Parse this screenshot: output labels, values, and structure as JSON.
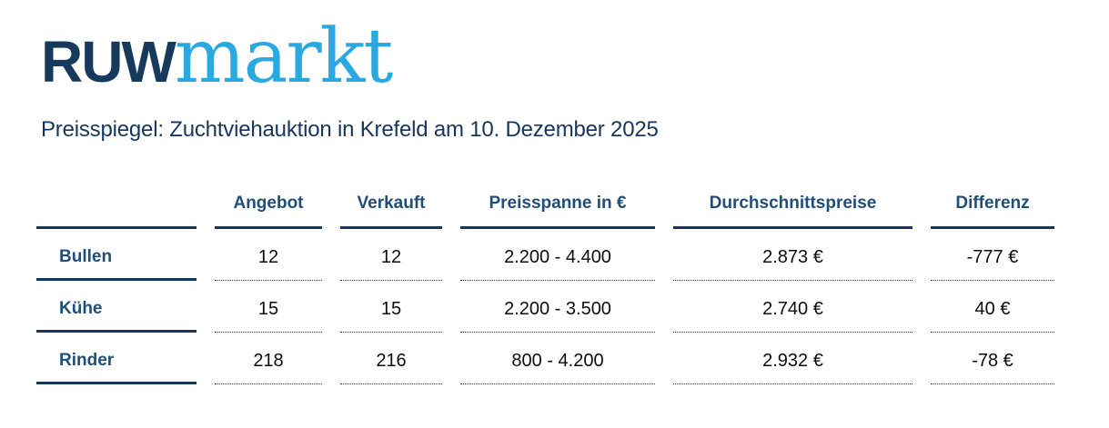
{
  "logo": {
    "part1": "RUW",
    "part2": "markt"
  },
  "subtitle": "Preisspiegel: Zuchtviehauktion in Krefeld am 10. Dezember 2025",
  "table": {
    "columns": [
      "Angebot",
      "Verkauft",
      "Preisspanne in €",
      "Durchschnittspreise",
      "Differenz"
    ],
    "rows": [
      {
        "label": "Bullen",
        "values": [
          "12",
          "12",
          "2.200 - 4.400",
          "2.873 €",
          "-777 €"
        ]
      },
      {
        "label": "Kühe",
        "values": [
          "15",
          "15",
          "2.200 - 3.500",
          "2.740 €",
          "40 €"
        ]
      },
      {
        "label": "Rinder",
        "values": [
          "218",
          "216",
          "800 - 4.200",
          "2.932 €",
          "-78 €"
        ]
      }
    ]
  },
  "colors": {
    "logo_navy": "#16395c",
    "logo_blue": "#29a9e0",
    "heading_navy": "#1f4e79",
    "line_navy": "#17365d",
    "data_text": "#0d0d0d"
  }
}
